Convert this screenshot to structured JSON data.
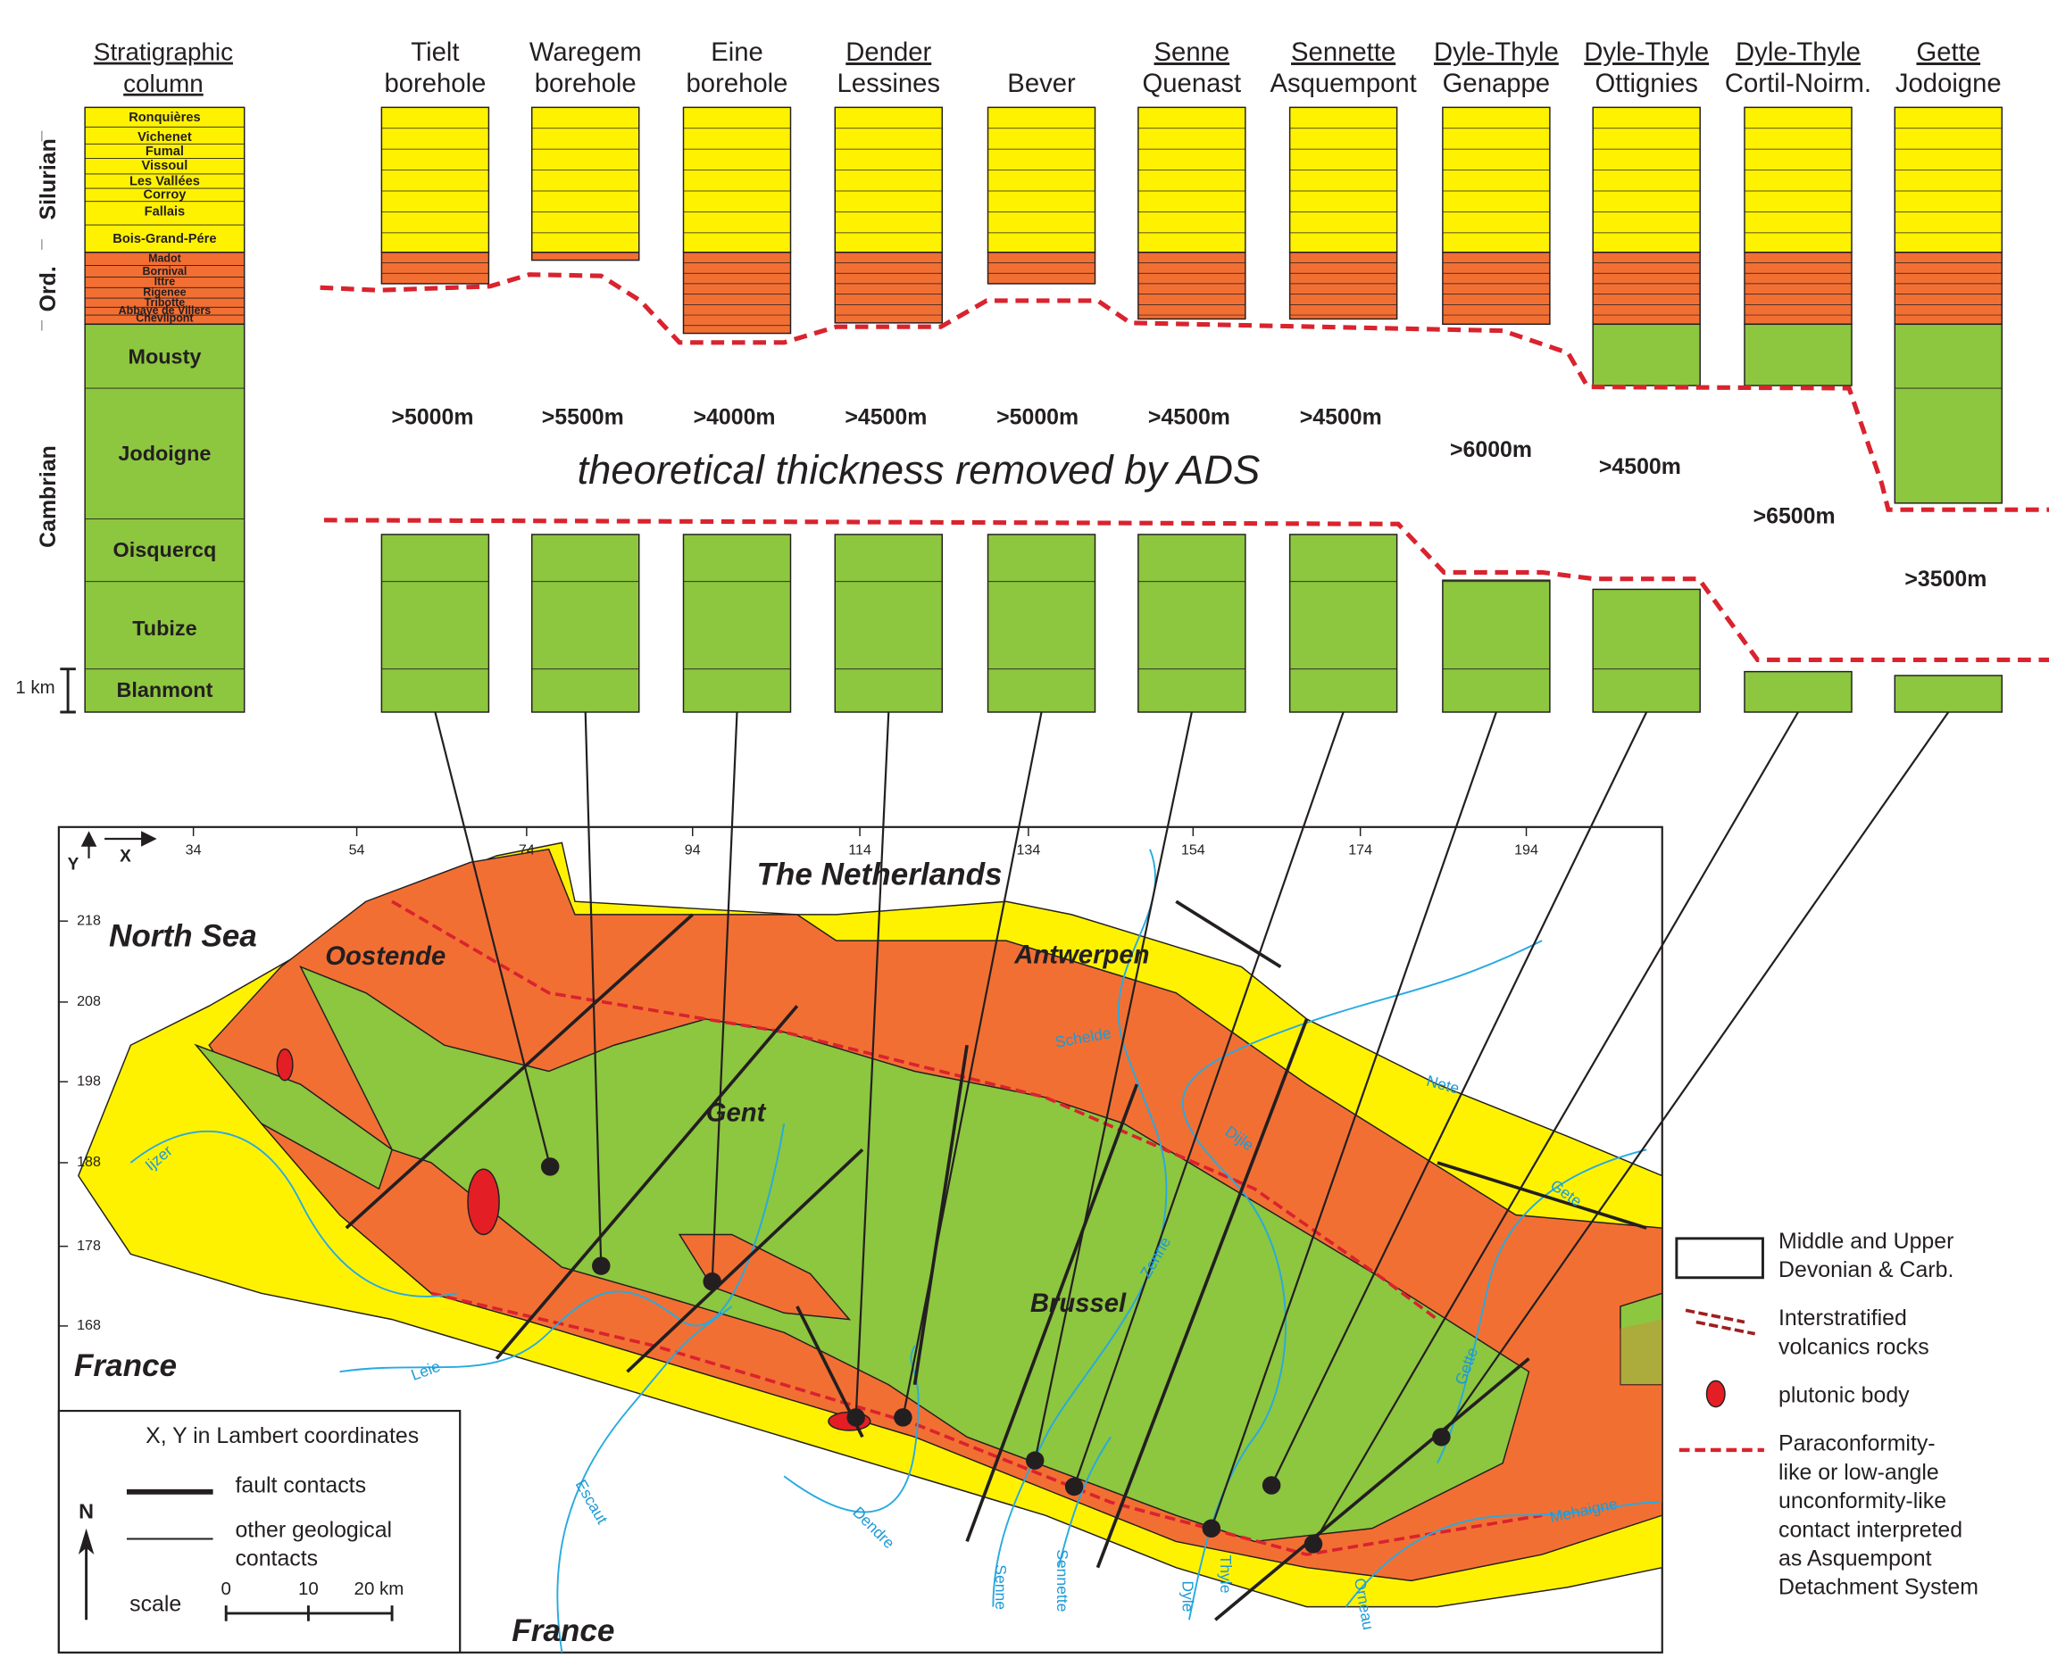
{
  "strat_column": {
    "title": [
      "Stratigraphic",
      "column"
    ],
    "periods": [
      "Silurian",
      "Ord.",
      "Cambrian"
    ],
    "units": [
      "Ronquières",
      "Vichenet",
      "Fumal",
      "Vissoul",
      "Les Vallées",
      "Corroy",
      "Fallais",
      "Bois-Grand-Pére",
      "Madot",
      "Bornival",
      "Ittre",
      "Rigenee",
      "Tribotte",
      "Abbaye de Villers",
      "Chevlipont",
      "Mousty",
      "Jodoigne",
      "Oisquercq",
      "Tubize",
      "Blanmont"
    ],
    "scale": "1 km"
  },
  "sections": [
    {
      "name": [
        "Tielt",
        "borehole"
      ],
      "thickness": ">5000m"
    },
    {
      "name": [
        "Waregem",
        "borehole"
      ],
      "thickness": ">5500m"
    },
    {
      "name": [
        "Eine",
        "borehole"
      ],
      "thickness": ">4000m"
    },
    {
      "name": [
        "Dender",
        "Lessines"
      ],
      "thickness": ">4500m"
    },
    {
      "name": [
        "Bever"
      ],
      "thickness": ">5000m"
    },
    {
      "name": [
        "Senne",
        "Quenast"
      ],
      "thickness": ">4500m"
    },
    {
      "name": [
        "Sennette",
        "Asquempont"
      ],
      "thickness": ">4500m"
    },
    {
      "name": [
        "Dyle-Thyle",
        "Genappe"
      ],
      "thickness": ">6000m"
    },
    {
      "name": [
        "Dyle-Thyle",
        "Ottignies"
      ],
      "thickness": ">4500m"
    },
    {
      "name": [
        "Dyle-Thyle",
        "Cortil-Noirm."
      ],
      "thickness": ">6500m"
    },
    {
      "name": [
        "Gette",
        "Jodoigne"
      ],
      "thickness": ">3500m"
    }
  ],
  "ads_label": "theoretical thickness removed by ADS",
  "map": {
    "axis_y": "Y",
    "axis_x": "X",
    "x_ticks": [
      34,
      54,
      74,
      94,
      114,
      134,
      154,
      174,
      194
    ],
    "y_ticks": [
      218,
      208,
      198,
      188,
      178,
      168
    ],
    "places": [
      "The Netherlands",
      "North Sea",
      "Oostende",
      "Antwerpen",
      "Gent",
      "Brussel",
      "France",
      "France"
    ],
    "rivers": [
      "Ijzer",
      "Leie",
      "Escaut",
      "Dendre",
      "Senne",
      "Sennette",
      "Dyle",
      "Thyle",
      "Orneau",
      "Schelde",
      "Dijle",
      "Nete",
      "Gete",
      "Gette",
      "Mehaigne",
      "Zenne"
    ],
    "legend": {
      "note": "X, Y in Lambert coordinates",
      "fault": "fault contacts",
      "other": [
        "other geological",
        "contacts"
      ],
      "north": "N",
      "scale": "scale",
      "scale_ticks": [
        "0",
        "10",
        "20 km"
      ]
    }
  },
  "legend": [
    {
      "label": [
        "Middle and Upper",
        "Devonian & Carb."
      ]
    },
    {
      "label": [
        "Interstratified",
        "volcanics rocks"
      ]
    },
    {
      "label": [
        "plutonic body"
      ]
    },
    {
      "label": [
        "Paraconformity-",
        "like or low-angle",
        "unconformity-like",
        "contact interpreted",
        "as Asquempont",
        "Detachment System"
      ]
    }
  ]
}
